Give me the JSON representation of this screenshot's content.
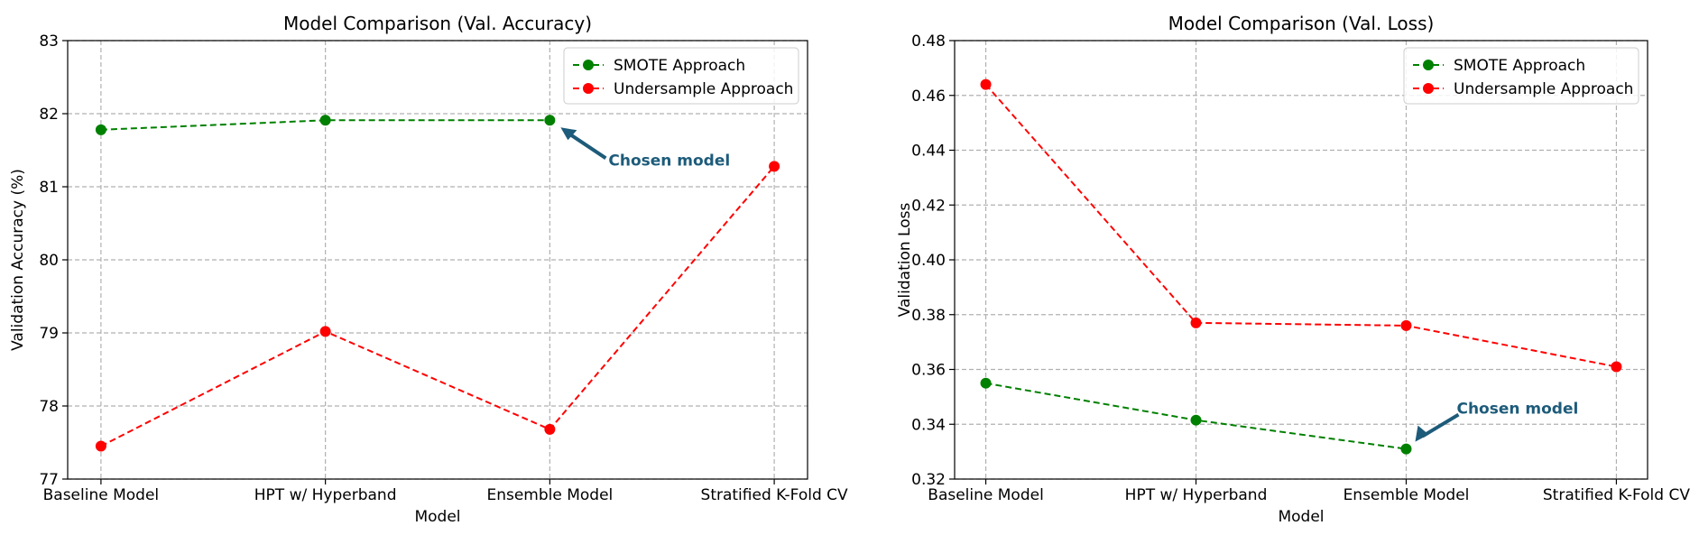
{
  "chart_data": [
    {
      "type": "line",
      "title": "Model Comparison (Val. Accuracy)",
      "xlabel": "Model",
      "ylabel": "Validation Accuracy (%)",
      "categories": [
        "Baseline Model",
        "HPT w/ Hyperband",
        "Ensemble Model",
        "Stratified K-Fold CV"
      ],
      "ylim": [
        77,
        83
      ],
      "yticks": [
        77,
        78,
        79,
        80,
        81,
        82,
        83
      ],
      "ytick_labels": [
        "77",
        "78",
        "79",
        "80",
        "81",
        "82",
        "83"
      ],
      "grid": true,
      "legend_position": "top-right",
      "series": [
        {
          "name": "SMOTE Approach",
          "color": "#008000",
          "values": [
            81.78,
            81.91,
            81.91,
            null
          ]
        },
        {
          "name": "Undersample Approach",
          "color": "#ff0000",
          "values": [
            77.45,
            79.02,
            77.68,
            81.28
          ]
        }
      ],
      "annotation": {
        "text": "Chosen model",
        "category": "Ensemble Model",
        "value": 81.91,
        "color": "#1d5b7a"
      }
    },
    {
      "type": "line",
      "title": "Model Comparison (Val. Loss)",
      "xlabel": "Model",
      "ylabel": "Validation Loss",
      "categories": [
        "Baseline Model",
        "HPT w/ Hyperband",
        "Ensemble Model",
        "Stratified K-Fold CV"
      ],
      "ylim": [
        0.32,
        0.48
      ],
      "yticks": [
        0.32,
        0.34,
        0.36,
        0.38,
        0.4,
        0.42,
        0.44,
        0.46,
        0.48
      ],
      "ytick_labels": [
        "0.32",
        "0.34",
        "0.36",
        "0.38",
        "0.40",
        "0.42",
        "0.44",
        "0.46",
        "0.48"
      ],
      "grid": true,
      "legend_position": "top-right",
      "series": [
        {
          "name": "SMOTE Approach",
          "color": "#008000",
          "values": [
            0.355,
            0.3415,
            0.331,
            null
          ]
        },
        {
          "name": "Undersample Approach",
          "color": "#ff0000",
          "values": [
            0.464,
            0.377,
            0.376,
            0.361
          ]
        }
      ],
      "annotation": {
        "text": "Chosen model",
        "category": "Ensemble Model",
        "value": 0.331,
        "color": "#1d5b7a"
      }
    }
  ]
}
